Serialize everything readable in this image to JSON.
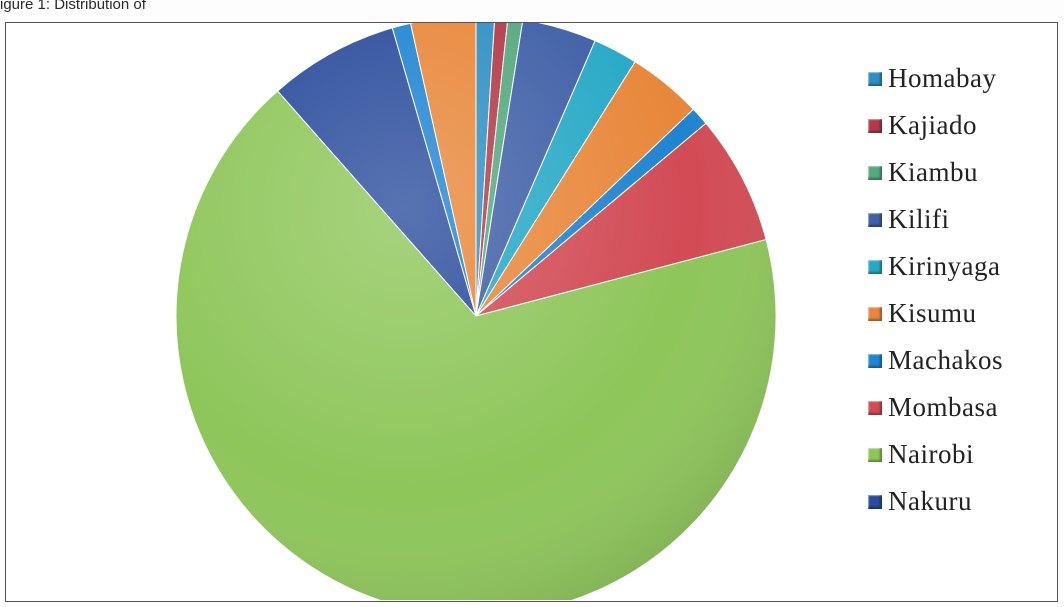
{
  "caption": "igure 1: Distribution of",
  "chart_data": {
    "type": "pie",
    "title": "",
    "categories": [
      "Homabay",
      "Kajiado",
      "Kiambu",
      "Kilifi",
      "Kirinyaga",
      "Kisumu",
      "Machakos",
      "Mombasa",
      "Nairobi",
      "Nakuru"
    ],
    "colors": [
      "#2f8fc4",
      "#b33a49",
      "#55a87f",
      "#3f5fa6",
      "#27a9c6",
      "#e8873a",
      "#1f84d1",
      "#d24b55",
      "#8ec65a",
      "#2a4c9c"
    ],
    "slices": [
      {
        "label": "Homabay",
        "value": 1.0
      },
      {
        "label": "Kajiado",
        "value": 0.7
      },
      {
        "label": "Kiambu",
        "value": 0.8
      },
      {
        "label": "Kilifi",
        "value": 4.0
      },
      {
        "label": "Kirinyaga",
        "value": 2.4
      },
      {
        "label": "Kisumu",
        "value": 4.0
      },
      {
        "label": "Machakos",
        "value": 1.0
      },
      {
        "label": "Mombasa",
        "value": 7.0
      },
      {
        "label": "Nairobi",
        "value": 67.6
      },
      {
        "label": "Nakuru",
        "value": 7.0
      },
      {
        "label": "Machakos",
        "value": 1.0
      },
      {
        "label": "Kisumu",
        "value": 3.5
      }
    ],
    "legend_position": "right"
  }
}
